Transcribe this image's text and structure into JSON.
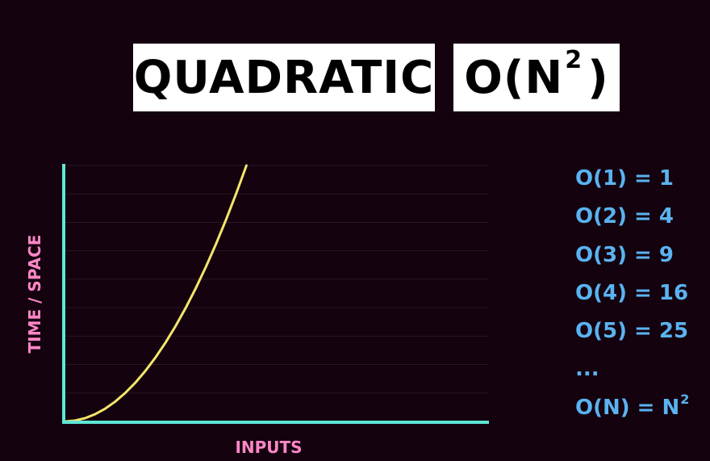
{
  "title": {
    "name": "QUADRATIC",
    "notation_base": "O(N",
    "notation_exponent": "2",
    "notation_close": ")"
  },
  "chart_data": {
    "type": "line",
    "xlabel": "INPUTS",
    "ylabel": "TIME / SPACE",
    "function": "x^2",
    "x": [
      0,
      0.5,
      1,
      1.5,
      2,
      2.5,
      3,
      3.5,
      4,
      4.5,
      5,
      5.5,
      6,
      6.5,
      7,
      7.5,
      8,
      8.5,
      9
    ],
    "y": [
      0,
      0.25,
      1,
      2.25,
      4,
      6.25,
      9,
      12.25,
      16,
      20.25,
      25,
      30.25,
      36,
      42.25,
      49,
      56.25,
      64,
      72.25,
      81
    ],
    "xlim": [
      0,
      21
    ],
    "ylim": [
      0,
      81
    ],
    "grid": true,
    "colors": {
      "curve": "#f3e66a",
      "axes": "#5fe6d6",
      "grid": "#2a1626",
      "axis_label": "#ff86c6"
    }
  },
  "legend": {
    "color": "#5ab3f0",
    "items": [
      {
        "text": "O(1) = 1"
      },
      {
        "text": "O(2) = 4"
      },
      {
        "text": "O(3) = 9"
      },
      {
        "text": "O(4) = 16"
      },
      {
        "text": "O(5) = 25"
      },
      {
        "text": "..."
      },
      {
        "text": "O(N) = N",
        "sup": "2"
      }
    ]
  }
}
